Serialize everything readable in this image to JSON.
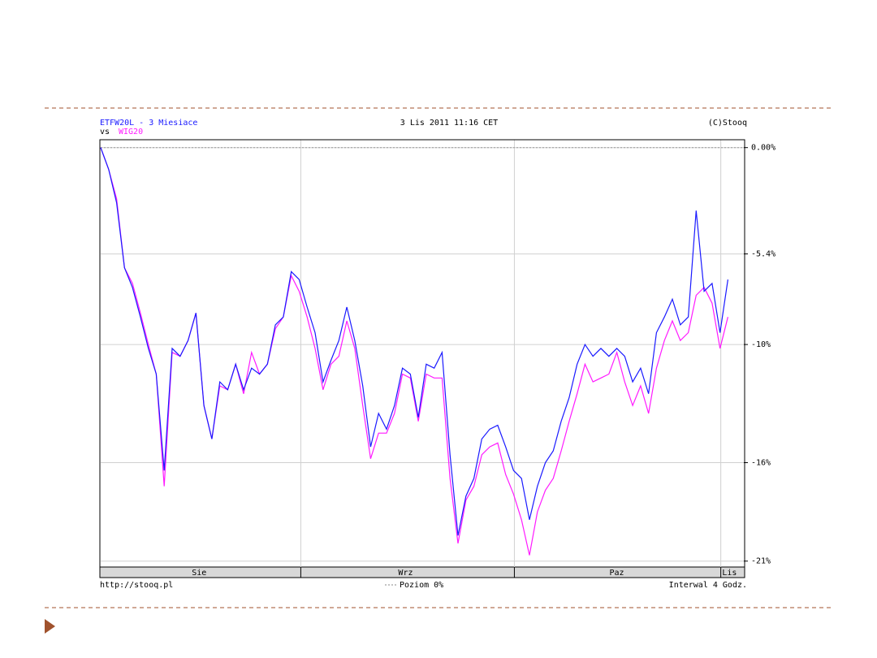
{
  "chart_data": {
    "type": "line",
    "title": "3 Lis 2011 11:16 CET",
    "copyright": "(C)Stooq",
    "vs_label": "vs",
    "source": "http://stooq.pl",
    "interval": "Interwal 4 Godz.",
    "reference": {
      "value": 0,
      "label": "Poziom 0%"
    },
    "x": [
      0,
      1,
      2,
      3,
      4,
      5,
      6,
      7,
      8,
      9,
      10,
      11,
      12,
      13,
      14,
      15,
      16,
      17,
      18,
      19,
      20,
      21,
      22,
      23,
      24,
      25,
      26,
      27,
      28,
      29,
      30,
      31,
      32,
      33,
      34,
      35,
      36,
      37,
      38,
      39,
      40,
      41,
      42,
      43,
      44,
      45,
      46,
      47,
      48,
      49,
      50,
      51,
      52,
      53,
      54,
      55,
      56,
      57,
      58,
      59,
      60,
      61,
      62,
      63,
      64,
      65,
      66,
      67,
      68,
      69,
      70,
      71,
      72,
      73,
      74,
      75,
      76,
      77,
      78,
      79
    ],
    "xlim": [
      0,
      81
    ],
    "xticks": [
      {
        "value": 12.4,
        "label": "Sie"
      },
      {
        "value": 38.4,
        "label": "Wrz"
      },
      {
        "value": 65,
        "label": "Paz"
      },
      {
        "value": 79.2,
        "label": "Lis"
      }
    ],
    "xgrid": [
      25.2,
      52.1,
      78.1
    ],
    "ylim": [
      -21.3,
      0.4
    ],
    "yticks": [
      {
        "value": 0,
        "label": "0.00%"
      },
      {
        "value": -5.4,
        "label": "-5.4%"
      },
      {
        "value": -10,
        "label": "-10%"
      },
      {
        "value": -16,
        "label": "-16%"
      },
      {
        "value": -21,
        "label": "-21%"
      }
    ],
    "grid": true,
    "series": [
      {
        "name": "ETFW20L - 3 Miesiace",
        "color": "#1a1aff",
        "values": [
          0.0,
          -1.1,
          -2.8,
          -6.1,
          -7.1,
          -8.6,
          -10.2,
          -11.5,
          -16.4,
          -10.2,
          -10.6,
          -9.8,
          -8.4,
          -13.1,
          -14.8,
          -11.9,
          -12.3,
          -11.0,
          -12.3,
          -11.2,
          -11.5,
          -11.0,
          -9.0,
          -8.6,
          -6.3,
          -6.7,
          -8.1,
          -9.4,
          -11.9,
          -10.8,
          -9.8,
          -8.1,
          -9.8,
          -12.1,
          -15.2,
          -13.5,
          -14.3,
          -13.1,
          -11.2,
          -11.5,
          -13.7,
          -11.0,
          -11.2,
          -10.4,
          -15.6,
          -19.7,
          -17.7,
          -16.8,
          -14.8,
          -14.3,
          -14.1,
          -15.2,
          -16.4,
          -16.8,
          -18.9,
          -17.2,
          -16.0,
          -15.4,
          -13.9,
          -12.7,
          -11.0,
          -10.0,
          -10.6,
          -10.2,
          -10.6,
          -10.2,
          -10.6,
          -11.9,
          -11.2,
          -12.5,
          -9.4,
          -8.6,
          -7.7,
          -9.0,
          -8.6,
          -3.2,
          -7.3,
          -6.9,
          -9.4,
          -6.7
        ]
      },
      {
        "name": "WIG20",
        "color": "#ff1aff",
        "values": [
          0.0,
          -1.1,
          -2.6,
          -6.1,
          -6.9,
          -8.4,
          -10.0,
          -11.5,
          -17.2,
          -10.4,
          -10.6,
          -9.8,
          -8.4,
          -13.1,
          -14.8,
          -12.1,
          -12.3,
          -11.0,
          -12.5,
          -10.4,
          -11.5,
          -11.0,
          -9.2,
          -8.6,
          -6.5,
          -7.3,
          -8.6,
          -10.2,
          -12.3,
          -11.0,
          -10.6,
          -8.8,
          -10.2,
          -13.1,
          -15.8,
          -14.5,
          -14.5,
          -13.5,
          -11.5,
          -11.7,
          -13.9,
          -11.5,
          -11.7,
          -11.7,
          -16.8,
          -20.1,
          -17.9,
          -17.2,
          -15.6,
          -15.2,
          -15.0,
          -16.6,
          -17.6,
          -18.9,
          -20.7,
          -18.5,
          -17.4,
          -16.8,
          -15.4,
          -13.9,
          -12.5,
          -11.0,
          -11.9,
          -11.7,
          -11.5,
          -10.4,
          -11.9,
          -13.1,
          -12.1,
          -13.5,
          -11.2,
          -9.8,
          -8.8,
          -9.8,
          -9.4,
          -7.5,
          -7.1,
          -7.9,
          -10.2,
          -8.6
        ]
      }
    ]
  }
}
